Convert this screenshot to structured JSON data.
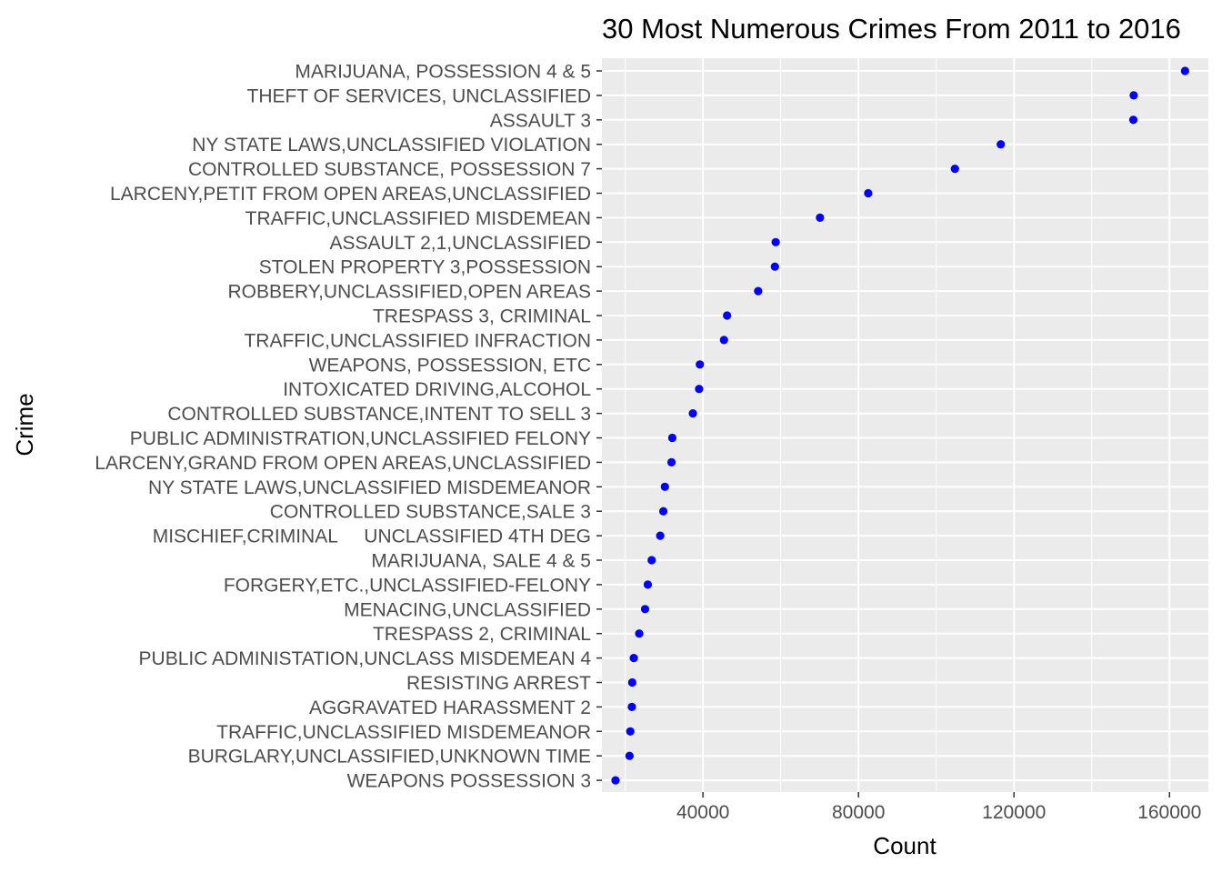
{
  "chart_data": {
    "type": "scatter",
    "title": "30 Most Numerous Crimes From 2011 to 2016",
    "xlabel": "Count",
    "ylabel": "Crime",
    "xlim": [
      14000,
      170000
    ],
    "xticks": [
      40000,
      80000,
      120000,
      160000
    ],
    "xtick_labels": [
      "40000",
      "80000",
      "120000",
      "160000"
    ],
    "grid": true,
    "legend": "none",
    "point_color": "#0000ff",
    "panel_background": "#ebebeb",
    "grid_color": "#ffffff",
    "categories": [
      "MARIJUANA, POSSESSION 4 & 5",
      "THEFT OF SERVICES, UNCLASSIFIED",
      "ASSAULT 3",
      "NY STATE LAWS,UNCLASSIFIED VIOLATION",
      "CONTROLLED SUBSTANCE, POSSESSION 7",
      "LARCENY,PETIT FROM OPEN AREAS,UNCLASSIFIED",
      "TRAFFIC,UNCLASSIFIED MISDEMEAN",
      "ASSAULT 2,1,UNCLASSIFIED",
      "STOLEN PROPERTY 3,POSSESSION",
      "ROBBERY,UNCLASSIFIED,OPEN AREAS",
      "TRESPASS 3, CRIMINAL",
      "TRAFFIC,UNCLASSIFIED INFRACTION",
      "WEAPONS, POSSESSION, ETC",
      "INTOXICATED DRIVING,ALCOHOL",
      "CONTROLLED SUBSTANCE,INTENT TO SELL 3",
      "PUBLIC ADMINISTRATION,UNCLASSIFIED FELONY",
      "LARCENY,GRAND FROM OPEN AREAS,UNCLASSIFIED",
      "NY STATE LAWS,UNCLASSIFIED MISDEMEANOR",
      "CONTROLLED SUBSTANCE,SALE 3",
      "MISCHIEF,CRIMINAL     UNCLASSIFIED 4TH DEG",
      "MARIJUANA, SALE 4 & 5",
      "FORGERY,ETC.,UNCLASSIFIED-FELONY",
      "MENACING,UNCLASSIFIED",
      "TRESPASS 2, CRIMINAL",
      "PUBLIC ADMINISTATION,UNCLASS MISDEMEAN 4",
      "RESISTING ARREST",
      "AGGRAVATED HARASSMENT 2",
      "TRAFFIC,UNCLASSIFIED MISDEMEANOR",
      "BURGLARY,UNCLASSIFIED,UNKNOWN TIME",
      "WEAPONS POSSESSION 3"
    ],
    "values": [
      164000,
      150800,
      150700,
      116600,
      104800,
      82500,
      70100,
      58700,
      58500,
      54200,
      46200,
      45400,
      39200,
      39000,
      37400,
      32100,
      31900,
      30200,
      29800,
      29000,
      26800,
      25800,
      25100,
      23600,
      22200,
      21800,
      21700,
      21300,
      21100,
      17500
    ]
  }
}
